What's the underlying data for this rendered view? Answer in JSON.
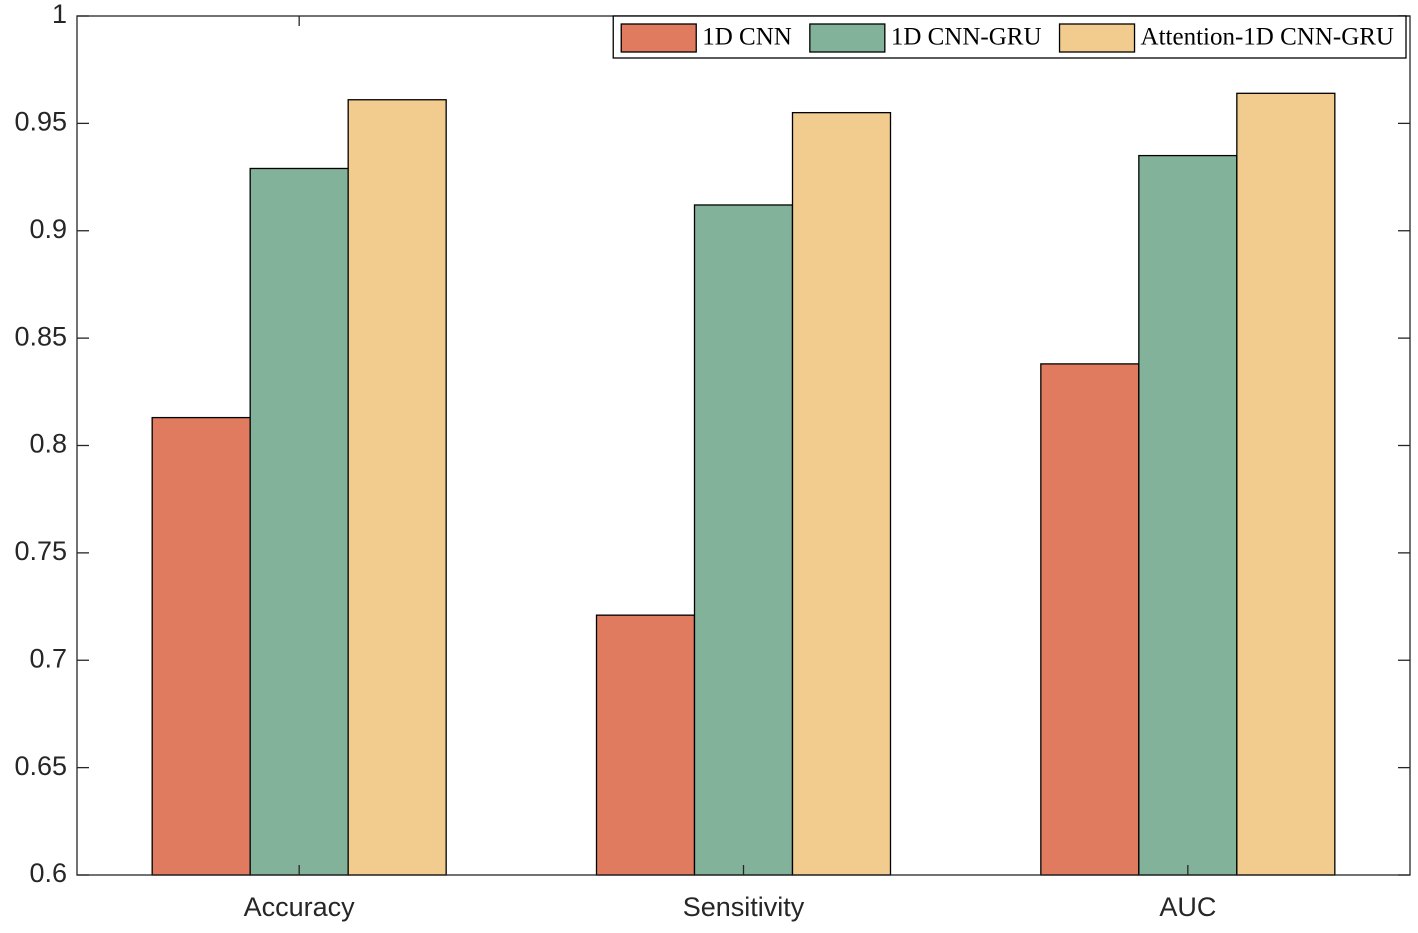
{
  "chart_data": {
    "type": "bar",
    "categories": [
      "Accuracy",
      "Sensitivity",
      "AUC"
    ],
    "series": [
      {
        "name": "1D CNN",
        "color": "#e07b5f",
        "values": [
          0.813,
          0.721,
          0.838
        ]
      },
      {
        "name": "1D CNN-GRU",
        "color": "#82b29a",
        "values": [
          0.929,
          0.912,
          0.935
        ]
      },
      {
        "name": "Attention-1D CNN-GRU",
        "color": "#f2cb8e",
        "values": [
          0.961,
          0.955,
          0.964
        ]
      }
    ],
    "ylim": [
      0.6,
      1
    ],
    "yticks": [
      0.6,
      0.65,
      0.7,
      0.75,
      0.8,
      0.85,
      0.9,
      0.95,
      1
    ],
    "grid": false,
    "legend": "top-right"
  }
}
